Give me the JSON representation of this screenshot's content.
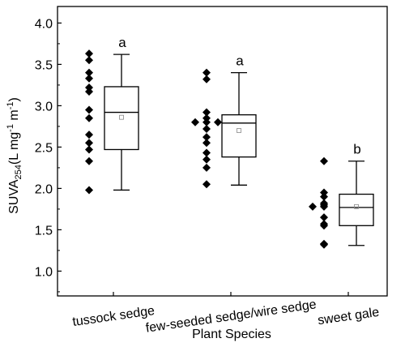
{
  "chart_data": {
    "type": "box",
    "xlabel": "Plant Species",
    "ylabel": {
      "main": "SUVA",
      "sub": "254",
      "unit_open": "(L mg",
      "unit_exp1": "-1",
      "unit_mid": " m",
      "unit_exp2": "-1",
      "unit_close": ")"
    },
    "ylim": [
      0.7,
      4.2
    ],
    "yticks": [
      1.0,
      1.5,
      2.0,
      2.5,
      3.0,
      3.5,
      4.0
    ],
    "ytick_labels": [
      "1.0",
      "1.5",
      "2.0",
      "2.5",
      "3.0",
      "3.5",
      "4.0"
    ],
    "categories": [
      "tussock sedge",
      "few-seeded sedge/wire sedge",
      "sweet gale"
    ],
    "groups": [
      {
        "name": "tussock sedge",
        "points": [
          3.63,
          3.55,
          3.4,
          3.33,
          3.22,
          3.17,
          2.95,
          2.85,
          2.65,
          2.55,
          2.47,
          2.33,
          1.98
        ],
        "box": {
          "whisker_low": 1.98,
          "q1": 2.47,
          "median": 2.92,
          "q3": 3.23,
          "whisker_high": 3.62,
          "mean": 2.86
        },
        "significance": "a"
      },
      {
        "name": "few-seeded sedge/wire sedge",
        "points": [
          3.4,
          3.32,
          2.92,
          2.85,
          2.8,
          2.8,
          2.8,
          2.72,
          2.62,
          2.55,
          2.43,
          2.35,
          2.25,
          2.05
        ],
        "box": {
          "whisker_low": 2.04,
          "q1": 2.38,
          "median": 2.79,
          "q3": 2.89,
          "whisker_high": 3.4,
          "mean": 2.7
        },
        "significance": "a"
      },
      {
        "name": "sweet gale",
        "points": [
          2.33,
          1.95,
          1.9,
          1.82,
          1.8,
          1.78,
          1.78,
          1.65,
          1.57,
          1.55,
          1.33,
          1.32
        ],
        "box": {
          "whisker_low": 1.31,
          "q1": 1.55,
          "median": 1.77,
          "q3": 1.93,
          "whisker_high": 2.33,
          "mean": 1.78
        },
        "significance": "b"
      }
    ]
  }
}
